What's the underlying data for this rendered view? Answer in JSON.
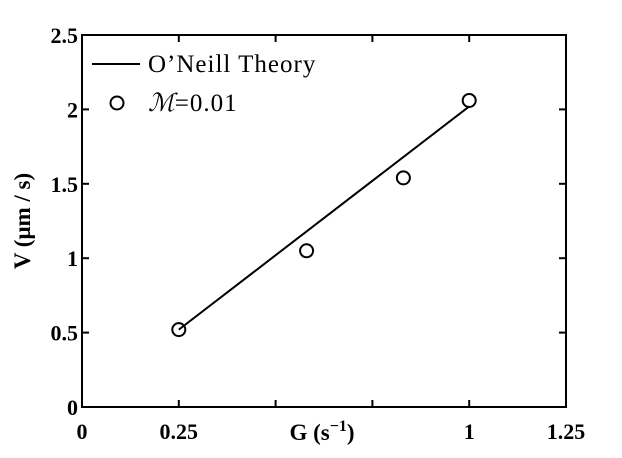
{
  "chart_data": {
    "type": "scatter",
    "xlabel": "G (s",
    "xlabel_exp": "−1",
    "xlabel_close": ")",
    "ylabel": "V (μm / s)",
    "xlim": [
      0,
      1.25
    ],
    "ylim": [
      0,
      2.5
    ],
    "xticks": [
      0,
      0.25,
      1,
      1.25
    ],
    "xtick_labels": [
      "0",
      "0.25",
      "1",
      "1.25"
    ],
    "xticks_unlabeled": [
      0.5,
      0.75
    ],
    "yticks": [
      0,
      0.5,
      1,
      1.5,
      2,
      2.5
    ],
    "ytick_labels": [
      "0",
      "0.5",
      "1",
      "1.5",
      "2",
      "2.5"
    ],
    "grid": false,
    "legend_position": "top-left",
    "series": [
      {
        "name": "O’Neill Theory",
        "style": "line",
        "color": "#000000",
        "x": [
          0.25,
          1.0
        ],
        "y": [
          0.52,
          2.02
        ]
      },
      {
        "name_symbol": "ℳ",
        "name_rest": "=0.01",
        "style": "marker-circle-open",
        "color": "#000000",
        "x": [
          0.25,
          0.58,
          0.83,
          1.0
        ],
        "y": [
          0.52,
          1.05,
          1.54,
          2.06
        ]
      }
    ]
  }
}
